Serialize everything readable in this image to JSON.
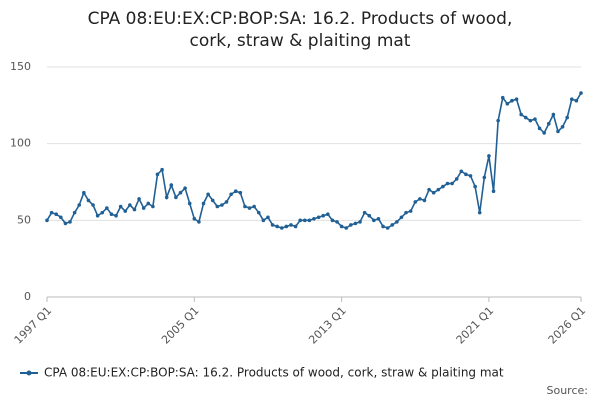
{
  "chart_data": {
    "type": "line",
    "title": "CPA 08:EU:EX:CP:BOP:SA: 16.2. Products of wood, cork, straw & plaiting mat",
    "categories": [
      "1997 Q1",
      null,
      null,
      null,
      null,
      null,
      null,
      null,
      null,
      null,
      null,
      null,
      null,
      null,
      null,
      null,
      null,
      null,
      null,
      null,
      null,
      null,
      null,
      null,
      null,
      null,
      null,
      null,
      null,
      null,
      null,
      null,
      "2005 Q1",
      null,
      null,
      null,
      null,
      null,
      null,
      null,
      null,
      null,
      null,
      null,
      null,
      null,
      null,
      null,
      null,
      null,
      null,
      null,
      null,
      null,
      null,
      null,
      null,
      null,
      null,
      null,
      null,
      null,
      null,
      null,
      "2013 Q1",
      null,
      null,
      null,
      null,
      null,
      null,
      null,
      null,
      null,
      null,
      null,
      null,
      null,
      null,
      null,
      null,
      null,
      null,
      null,
      null,
      null,
      null,
      null,
      null,
      null,
      null,
      null,
      null,
      null,
      null,
      null,
      "2021 Q1",
      null,
      null,
      null,
      null,
      null,
      null,
      null,
      null,
      null,
      null,
      null,
      null,
      null,
      null,
      null,
      null,
      null,
      null,
      null,
      "2026 Q1"
    ],
    "series": [
      {
        "name": "CPA 08:EU:EX:CP:BOP:SA: 16.2. Products of wood, cork, straw & plaiting mat",
        "color": "#206095",
        "values": [
          50,
          55,
          54,
          52,
          48,
          49,
          55,
          60,
          68,
          63,
          60,
          53,
          55,
          58,
          54,
          53,
          59,
          56,
          60,
          57,
          64,
          58,
          61,
          59,
          80,
          83,
          65,
          73,
          65,
          68,
          71,
          61,
          51,
          49,
          61,
          67,
          63,
          59,
          60,
          62,
          67,
          69,
          68,
          59,
          58,
          59,
          55,
          50,
          52,
          47,
          46,
          45,
          46,
          47,
          46,
          50,
          50,
          50,
          51,
          52,
          53,
          54,
          50,
          49,
          46,
          45,
          47,
          48,
          49,
          55,
          53,
          50,
          51,
          46,
          45,
          47,
          49,
          52,
          55,
          56,
          62,
          64,
          63,
          70,
          68,
          70,
          72,
          74,
          74,
          77,
          82,
          80,
          79,
          72,
          55,
          78,
          92,
          69,
          115,
          130,
          126,
          128,
          129,
          119,
          117,
          115,
          116,
          110,
          107,
          113,
          119,
          108,
          111,
          117,
          129,
          128,
          133
        ]
      }
    ],
    "ylim": [
      0,
      150
    ],
    "yticks": [
      0,
      50,
      100,
      150
    ],
    "grid": true,
    "source": "Source:"
  }
}
